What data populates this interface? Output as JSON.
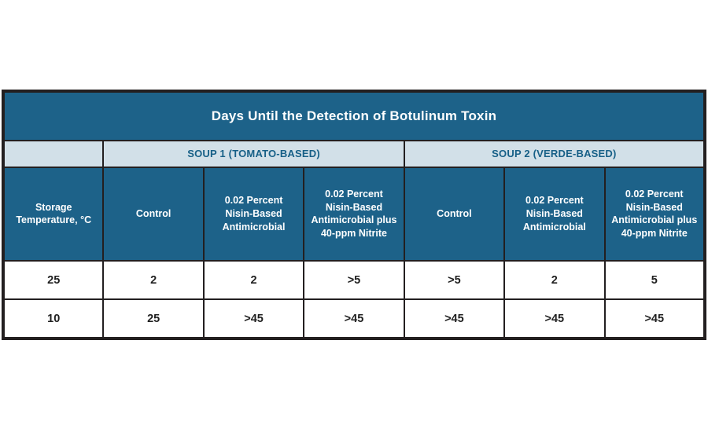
{
  "chart_data": {
    "type": "table",
    "title": "Days Until the Detection of Botulinum Toxin",
    "column_groups": [
      {
        "label": "",
        "span": 1
      },
      {
        "label": "SOUP 1 (TOMATO-BASED)",
        "span": 3
      },
      {
        "label": "SOUP 2 (VERDE-BASED)",
        "span": 3
      }
    ],
    "columns": [
      "Storage Temperature, °C",
      "Control",
      "0.02 Percent Nisin-Based Antimicrobial",
      "0.02 Percent Nisin-Based Antimicrobial plus 40-ppm Nitrite",
      "Control",
      "0.02 Percent Nisin-Based Antimicrobial",
      "0.02 Percent Nisin-Based Antimicrobial plus 40-ppm Nitrite"
    ],
    "rows": [
      [
        "25",
        "2",
        "2",
        ">5",
        ">5",
        "2",
        "5"
      ],
      [
        "10",
        "25",
        ">45",
        ">45",
        ">45",
        ">45",
        ">45"
      ]
    ]
  },
  "colors": {
    "teal": "#1d6289",
    "light_blue": "#d2e0e8",
    "border": "#231f20",
    "title_text": "#ffffff",
    "group_text": "#176087",
    "data_text": "#1f1f1f",
    "page_background": "#ffffff"
  }
}
